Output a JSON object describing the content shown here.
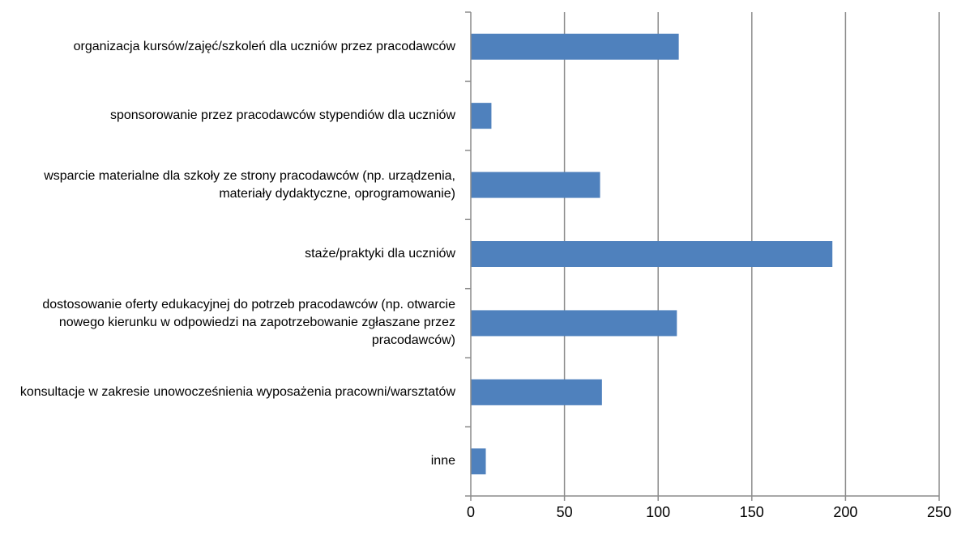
{
  "chart_data": {
    "type": "bar",
    "orientation": "horizontal",
    "categories": [
      "organizacja kursów/zajęć/szkoleń dla uczniów przez pracodawców",
      "sponsorowanie przez pracodawców stypendiów dla uczniów",
      "wsparcie materialne dla szkoły ze strony pracodawców (np. urządzenia, materiały dydaktyczne, oprogramowanie)",
      "staże/praktyki dla uczniów",
      "dostosowanie oferty edukacyjnej do potrzeb pracodawców (np. otwarcie nowego kierunku w odpowiedzi na zapotrzebowanie zgłaszane przez pracodawców)",
      "konsultacje w zakresie unowocześnienia wyposażenia pracowni/warsztatów",
      "inne"
    ],
    "values": [
      111,
      11,
      69,
      193,
      110,
      70,
      8
    ],
    "xlim": [
      0,
      250
    ],
    "xticks": [
      "0",
      "50",
      "100",
      "150",
      "200",
      "250"
    ],
    "grid": true,
    "bar_color": "#4f81bd",
    "title": "",
    "xlabel": "",
    "ylabel": ""
  }
}
